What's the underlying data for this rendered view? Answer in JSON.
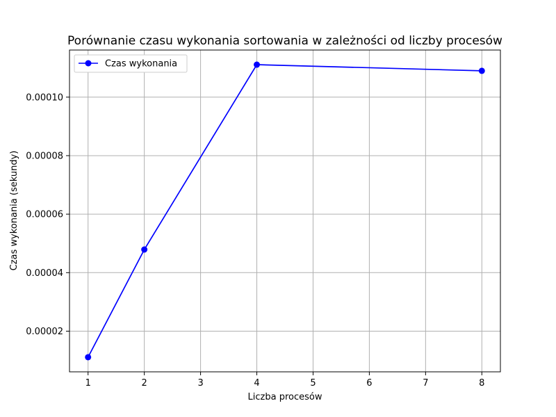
{
  "chart_data": {
    "type": "line",
    "title": "Porównanie czasu wykonania sortowania w zależności od liczby procesów",
    "xlabel": "Liczba procesów",
    "ylabel": "Czas wykonania (sekundy)",
    "x": [
      1,
      2,
      4,
      8
    ],
    "xlim": [
      0.67,
      8.33
    ],
    "xticks": [
      1,
      2,
      3,
      4,
      5,
      6,
      7,
      8
    ],
    "xtick_labels": [
      "1",
      "2",
      "3",
      "4",
      "5",
      "6",
      "7",
      "8"
    ],
    "ylim": [
      6.1e-06,
      0.0001161
    ],
    "yticks": [
      2e-05,
      4e-05,
      6e-05,
      8e-05,
      0.0001
    ],
    "ytick_labels": [
      "0.00002",
      "0.00004",
      "0.00006",
      "0.00008",
      "0.00010"
    ],
    "series": [
      {
        "name": "Czas wykonania",
        "values": [
          1.11e-05,
          4.79e-05,
          0.0001111,
          0.000109
        ],
        "color": "#0000ff",
        "marker": "circle"
      }
    ],
    "grid": true,
    "legend": "upper-left"
  }
}
